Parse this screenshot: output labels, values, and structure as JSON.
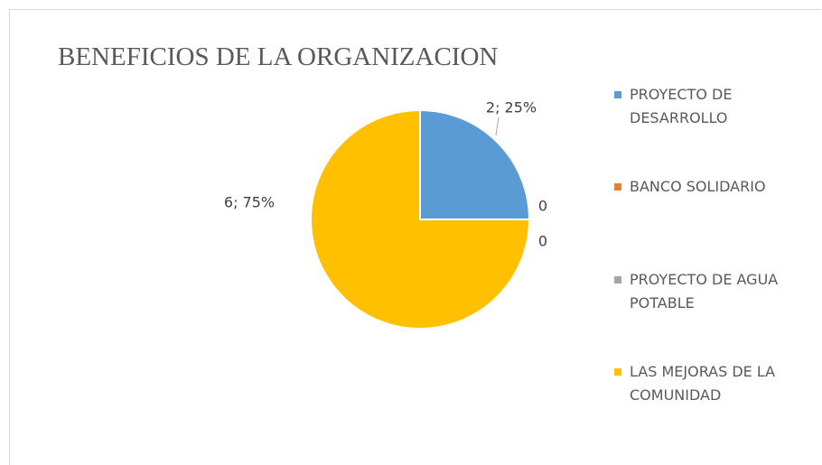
{
  "chart_data": {
    "type": "pie",
    "title": "BENEFICIOS DE LA ORGANIZACION",
    "categories": [
      "PROYECTO DE DESARROLLO",
      "BANCO SOLIDARIO",
      "PROYECTO DE AGUA POTABLE",
      "LAS MEJORAS DE LA COMUNIDAD"
    ],
    "values": [
      2,
      0,
      0,
      6
    ],
    "value_labels": [
      "2; 25%",
      "0",
      "0",
      "6; 75%"
    ],
    "colors": [
      "#5b9bd5",
      "#ed7d31",
      "#a5a5a5",
      "#ffc000"
    ],
    "legend": "right"
  }
}
